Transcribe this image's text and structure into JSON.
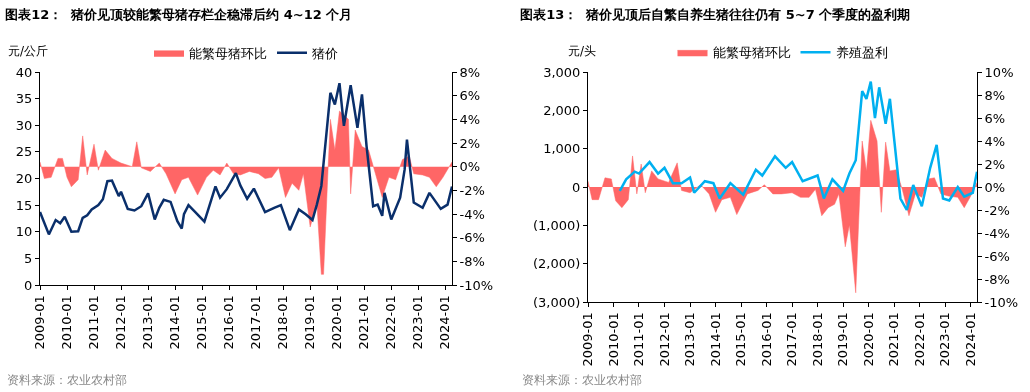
{
  "chart_data": [
    {
      "type": "line",
      "title": "图表12：  猪价见顶较能繁母猪存栏企稳滞后约 4~12 个月",
      "ylabel": "元/公斤",
      "legend": "top",
      "grid": false,
      "xlim": [
        "2009-01",
        "2024-04"
      ],
      "xticks": [
        "2009-01",
        "2010-01",
        "2011-01",
        "2012-01",
        "2013-01",
        "2014-01",
        "2015-01",
        "2016-01",
        "2017-01",
        "2018-01",
        "2019-01",
        "2020-01",
        "2021-01",
        "2022-01",
        "2023-01",
        "2024-01"
      ],
      "ylim": [
        0,
        40
      ],
      "yticks": [
        0,
        5,
        10,
        15,
        20,
        25,
        30,
        35,
        40
      ],
      "y2lim": [
        -10,
        8
      ],
      "y2ticks": [
        {
          "value": -10,
          "label": "-10%"
        },
        {
          "value": -8,
          "label": "-8%"
        },
        {
          "value": -6,
          "label": "-6%"
        },
        {
          "value": -4,
          "label": "-4%"
        },
        {
          "value": -2,
          "label": "-2%"
        },
        {
          "value": 0,
          "label": "0%"
        },
        {
          "value": 2,
          "label": "2%"
        },
        {
          "value": 4,
          "label": "4%"
        },
        {
          "value": 6,
          "label": "6%"
        },
        {
          "value": 8,
          "label": "8%"
        }
      ],
      "annotations": [
        "资料来源：农业农村部"
      ],
      "series": [
        {
          "name": "能繁母猪环比",
          "type": "area",
          "axis": "y2",
          "color": "#ff6666",
          "x": [
            "2009-01",
            "2009-03",
            "2009-06",
            "2009-09",
            "2009-11",
            "2010-01",
            "2010-03",
            "2010-06",
            "2010-08",
            "2010-10",
            "2011-01",
            "2011-03",
            "2011-06",
            "2011-09",
            "2012-01",
            "2012-06",
            "2012-08",
            "2012-10",
            "2013-02",
            "2013-06",
            "2013-09",
            "2014-01",
            "2014-04",
            "2014-07",
            "2014-11",
            "2015-03",
            "2015-06",
            "2015-09",
            "2015-12",
            "2016-03",
            "2016-06",
            "2016-10",
            "2017-02",
            "2017-05",
            "2017-08",
            "2017-11",
            "2018-02",
            "2018-05",
            "2018-08",
            "2018-10",
            "2019-01",
            "2019-04",
            "2019-06",
            "2019-07",
            "2019-09",
            "2019-10",
            "2019-12",
            "2020-02",
            "2020-06",
            "2020-07",
            "2020-09",
            "2020-12",
            "2021-03",
            "2021-06",
            "2021-09",
            "2021-12",
            "2022-03",
            "2022-06",
            "2022-09",
            "2022-11",
            "2023-03",
            "2023-06",
            "2023-09",
            "2023-12",
            "2024-04"
          ],
          "values": [
            0.4,
            -1.0,
            -0.9,
            0.7,
            0.7,
            -0.9,
            -1.7,
            -1.1,
            2.6,
            -0.7,
            1.9,
            -0.3,
            1.4,
            0.7,
            0.3,
            0,
            2.1,
            -0.1,
            -0.4,
            0.3,
            -0.6,
            -2.3,
            -1.1,
            -0.9,
            -2.4,
            -0.9,
            -0.3,
            -0.7,
            0.3,
            -0.6,
            -0.7,
            -0.4,
            -0.6,
            -1.0,
            -0.9,
            -0.1,
            -2.6,
            -1.4,
            -2.0,
            -0.6,
            -5.1,
            -3.1,
            -9.1,
            -9.1,
            0,
            4.0,
            1.4,
            4.7,
            4.0,
            -2.3,
            3.1,
            1.7,
            1.4,
            -0.6,
            -2.6,
            -0.9,
            -1.1,
            0.6,
            0.9,
            -0.6,
            -0.7,
            -0.9,
            -1.7,
            -0.9,
            0.4
          ]
        },
        {
          "name": "猪价",
          "type": "line",
          "color": "#0a2f6b",
          "x": [
            "2009-01",
            "2009-05",
            "2009-08",
            "2009-10",
            "2009-12",
            "2010-03",
            "2010-06",
            "2010-08",
            "2010-10",
            "2010-12",
            "2011-03",
            "2011-05",
            "2011-07",
            "2011-09",
            "2011-12",
            "2012-01",
            "2012-04",
            "2012-07",
            "2012-10",
            "2013-01",
            "2013-04",
            "2013-06",
            "2013-08",
            "2013-11",
            "2014-02",
            "2014-04",
            "2014-05",
            "2014-07",
            "2014-10",
            "2015-02",
            "2015-04",
            "2015-07",
            "2015-09",
            "2015-12",
            "2016-04",
            "2016-06",
            "2016-09",
            "2016-12",
            "2017-05",
            "2017-09",
            "2017-12",
            "2018-04",
            "2018-08",
            "2018-11",
            "2019-02",
            "2019-04",
            "2019-06",
            "2019-10",
            "2019-12",
            "2020-02",
            "2020-04",
            "2020-07",
            "2020-10",
            "2020-12",
            "2021-02",
            "2021-05",
            "2021-07",
            "2021-09",
            "2021-10",
            "2022-01",
            "2022-05",
            "2022-07",
            "2022-08",
            "2022-11",
            "2023-03",
            "2023-06",
            "2023-11",
            "2024-02",
            "2024-04"
          ],
          "values": [
            13.7,
            9.5,
            12.2,
            11.6,
            12.8,
            10.0,
            10.1,
            12.6,
            13.1,
            14.2,
            15.0,
            16.1,
            19.5,
            19.6,
            16.7,
            17.5,
            14.3,
            14.0,
            14.8,
            17.2,
            12.3,
            14.5,
            16.0,
            15.6,
            12.0,
            10.6,
            13.3,
            15.0,
            13.7,
            11.9,
            14.5,
            18.5,
            16.4,
            18.0,
            21.0,
            18.7,
            16.2,
            18.1,
            13.7,
            14.5,
            15.0,
            10.3,
            14.2,
            13.3,
            12.2,
            15.1,
            18.6,
            36.1,
            33.9,
            37.9,
            29.9,
            37.5,
            29.5,
            35.8,
            26.1,
            14.8,
            15.1,
            13.0,
            17.3,
            12.3,
            16.4,
            21.7,
            27.3,
            15.5,
            14.5,
            17.3,
            14.3,
            15.1,
            18.5
          ]
        }
      ]
    },
    {
      "type": "line",
      "title": "图表13：  猪价见顶后自繁自养生猪往往仍有 5~7 个季度的盈利期",
      "ylabel": "元/头",
      "legend": "top",
      "grid": false,
      "xlim": [
        "2009-01",
        "2024-04"
      ],
      "xticks": [
        "2009-01",
        "2010-01",
        "2011-01",
        "2012-01",
        "2013-01",
        "2014-01",
        "2015-01",
        "2016-01",
        "2017-01",
        "2018-01",
        "2019-01",
        "2020-01",
        "2021-01",
        "2022-01",
        "2023-01",
        "2024-01"
      ],
      "ylim": [
        -3000,
        3000
      ],
      "yticks": [
        {
          "value": -3000,
          "label": "(3,000)"
        },
        {
          "value": -2000,
          "label": "(2,000)"
        },
        {
          "value": -1000,
          "label": "(1,000)"
        },
        0,
        {
          "value": 1000,
          "label": "1,000"
        },
        {
          "value": 2000,
          "label": "2,000"
        },
        {
          "value": 3000,
          "label": "3,000"
        }
      ],
      "y2lim": [
        -10,
        10
      ],
      "y2ticks": [
        {
          "value": -10,
          "label": "-10%"
        },
        {
          "value": -8,
          "label": "-8%"
        },
        {
          "value": -6,
          "label": "-6%"
        },
        {
          "value": -4,
          "label": "-4%"
        },
        {
          "value": -2,
          "label": "-2%"
        },
        {
          "value": 0,
          "label": "0%"
        },
        {
          "value": 2,
          "label": "2%"
        },
        {
          "value": 4,
          "label": "4%"
        },
        {
          "value": 6,
          "label": "6%"
        },
        {
          "value": 8,
          "label": "8%"
        },
        {
          "value": 10,
          "label": "10%"
        }
      ],
      "annotations": [
        "资料来源：农业农村部"
      ],
      "series": [
        {
          "name": "能繁母猪环比",
          "type": "area",
          "axis": "y2",
          "color": "#ff6666",
          "x": [
            "2009-01",
            "2009-03",
            "2009-06",
            "2009-09",
            "2009-12",
            "2010-02",
            "2010-05",
            "2010-08",
            "2010-10",
            "2010-12",
            "2011-02",
            "2011-04",
            "2011-07",
            "2011-10",
            "2012-03",
            "2012-07",
            "2012-09",
            "2013-01",
            "2013-06",
            "2013-10",
            "2014-01",
            "2014-04",
            "2014-08",
            "2014-11",
            "2015-04",
            "2015-09",
            "2015-12",
            "2016-04",
            "2016-08",
            "2017-01",
            "2017-05",
            "2017-09",
            "2017-12",
            "2018-03",
            "2018-06",
            "2018-09",
            "2018-11",
            "2019-02",
            "2019-04",
            "2019-07",
            "2019-09",
            "2019-10",
            "2019-12",
            "2020-02",
            "2020-05",
            "2020-07",
            "2020-09",
            "2020-11",
            "2021-02",
            "2021-05",
            "2021-08",
            "2021-11",
            "2022-02",
            "2022-05",
            "2022-08",
            "2022-11",
            "2023-03",
            "2023-07",
            "2023-10",
            "2024-01",
            "2024-04"
          ],
          "values": [
            0.5,
            -1.1,
            -1.1,
            0.8,
            0.7,
            -1.2,
            -1.8,
            -1.1,
            2.7,
            -0.6,
            2.0,
            -0.5,
            1.4,
            0.7,
            0.4,
            2.1,
            -0.3,
            -0.5,
            0.2,
            -0.6,
            -2.2,
            -1.1,
            -0.9,
            -2.4,
            -0.6,
            -0.3,
            0.2,
            -0.6,
            -0.6,
            -0.5,
            -0.9,
            -0.9,
            -0.2,
            -2.5,
            -1.8,
            -1.5,
            -0.6,
            -5.2,
            -3.3,
            -9.2,
            -0.1,
            4.0,
            1.4,
            5.8,
            4.0,
            -2.2,
            3.9,
            1.4,
            1.5,
            -0.3,
            -2.5,
            -0.6,
            -0.9,
            0.7,
            0.8,
            -0.6,
            -0.8,
            -0.9,
            -1.8,
            -0.8,
            0.4
          ]
        },
        {
          "name": "养殖盈利",
          "type": "line",
          "color": "#00b0f0",
          "x": [
            "2010-04",
            "2010-07",
            "2010-11",
            "2011-01",
            "2011-06",
            "2011-10",
            "2012-01",
            "2012-05",
            "2012-09",
            "2013-01",
            "2013-03",
            "2013-08",
            "2013-12",
            "2014-03",
            "2014-08",
            "2015-02",
            "2015-08",
            "2015-11",
            "2016-05",
            "2016-10",
            "2017-01",
            "2017-06",
            "2018-01",
            "2018-04",
            "2018-08",
            "2019-01",
            "2019-04",
            "2019-07",
            "2019-10",
            "2019-12",
            "2020-02",
            "2020-04",
            "2020-06",
            "2020-09",
            "2020-11",
            "2021-04",
            "2021-07",
            "2021-10",
            "2022-02",
            "2022-06",
            "2022-09",
            "2022-12",
            "2023-03",
            "2023-07",
            "2023-10",
            "2024-02",
            "2024-04"
          ],
          "values": [
            -100,
            200,
            400,
            350,
            650,
            350,
            500,
            100,
            100,
            250,
            -150,
            150,
            100,
            -300,
            100,
            -200,
            450,
            300,
            800,
            500,
            650,
            150,
            300,
            -300,
            200,
            -100,
            350,
            700,
            2500,
            2300,
            2750,
            1800,
            2600,
            1650,
            2300,
            -300,
            -600,
            50,
            -500,
            500,
            1100,
            -300,
            -350,
            0,
            -250,
            -150,
            400
          ]
        }
      ]
    }
  ]
}
